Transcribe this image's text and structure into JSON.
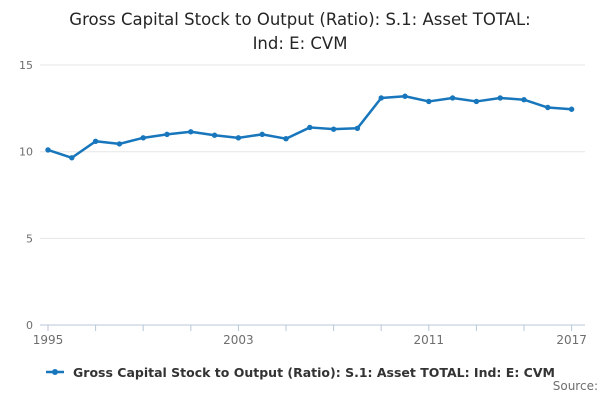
{
  "title": {
    "text": "Gross Capital Stock to Output (Ratio): S.1: Asset TOTAL: Ind: E: CVM",
    "line1": "Gross Capital Stock to Output (Ratio): S.1: Asset TOTAL:",
    "line2": "Ind: E: CVM"
  },
  "legend": {
    "label": "Gross Capital Stock to Output (Ratio): S.1: Asset TOTAL: Ind: E: CVM"
  },
  "source_label": "Source:",
  "colors": {
    "line": "#1776bc",
    "grid": "#e6e6e6",
    "axis": "#b8c7d8",
    "tick_text": "#6e6e6e",
    "title_text": "#252525",
    "legend_text": "#333333"
  },
  "chart_data": {
    "type": "line",
    "title": "Gross Capital Stock to Output (Ratio): S.1: Asset TOTAL: Ind: E: CVM",
    "xlabel": "",
    "ylabel": "",
    "x": [
      1995,
      1996,
      1997,
      1998,
      1999,
      2000,
      2001,
      2002,
      2003,
      2004,
      2005,
      2006,
      2007,
      2008,
      2009,
      2010,
      2011,
      2012,
      2013,
      2014,
      2015,
      2016,
      2017
    ],
    "series": [
      {
        "name": "Gross Capital Stock to Output (Ratio): S.1: Asset TOTAL: Ind: E: CVM",
        "color": "#1776bc",
        "values": [
          10.1,
          9.65,
          10.6,
          10.45,
          10.8,
          11.0,
          11.15,
          10.95,
          10.8,
          11.0,
          10.75,
          11.4,
          11.3,
          11.35,
          13.1,
          13.2,
          12.9,
          13.1,
          12.9,
          13.1,
          13.0,
          12.55,
          12.45
        ]
      }
    ],
    "ylim": [
      0,
      15
    ],
    "y_ticks": [
      0,
      5,
      10,
      15
    ],
    "x_minor_ticks": [
      1995,
      1997,
      1999,
      2001,
      2003,
      2005,
      2007,
      2009,
      2011,
      2013,
      2015,
      2017
    ],
    "x_tick_labels": [
      1995,
      2003,
      2011,
      2017
    ],
    "grid": "horizontal",
    "legend_position": "bottom",
    "marker": "circle"
  }
}
